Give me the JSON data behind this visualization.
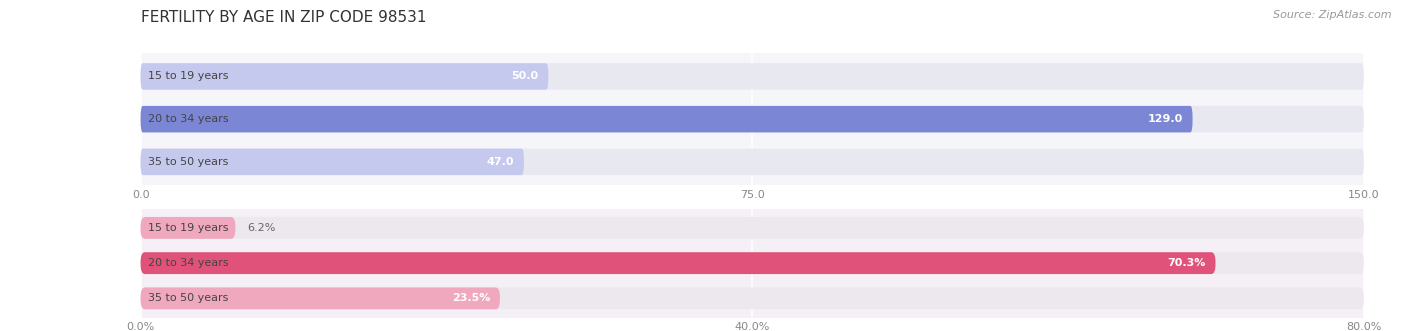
{
  "title": "FERTILITY BY AGE IN ZIP CODE 98531",
  "source": "Source: ZipAtlas.com",
  "top_chart": {
    "categories": [
      "15 to 19 years",
      "20 to 34 years",
      "35 to 50 years"
    ],
    "values": [
      50.0,
      129.0,
      47.0
    ],
    "xlim": [
      0,
      150
    ],
    "xticks": [
      0.0,
      75.0,
      150.0
    ],
    "bar_color_strong": "#7b86d4",
    "bar_color_light": "#c5c9ee",
    "bar_bg_color": "#e8e8f0"
  },
  "bottom_chart": {
    "categories": [
      "15 to 19 years",
      "20 to 34 years",
      "35 to 50 years"
    ],
    "values": [
      6.2,
      70.3,
      23.5
    ],
    "xlim": [
      0,
      80
    ],
    "xticks": [
      0.0,
      40.0,
      80.0
    ],
    "bar_color_strong": "#e0527a",
    "bar_color_light": "#f0a8be",
    "bar_bg_color": "#ede8ee"
  },
  "fig_width": 14.06,
  "fig_height": 3.31,
  "dpi": 100,
  "bg_color": "#ffffff",
  "panel_bg_top": "#f5f5fa",
  "panel_bg_bot": "#f5f0f5",
  "title_fontsize": 11,
  "label_fontsize": 8,
  "tick_fontsize": 8,
  "source_fontsize": 8,
  "bar_height": 0.62,
  "category_fontsize": 8
}
